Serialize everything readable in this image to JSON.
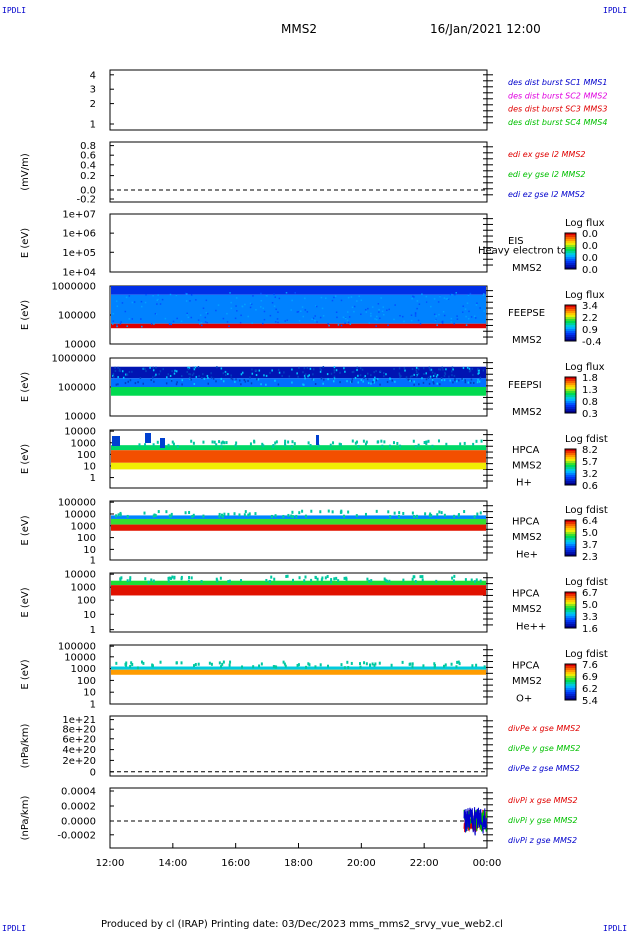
{
  "corners": {
    "tl": "IPDLI",
    "tr": "IPDLI",
    "bl": "IPDLI",
    "br": "IPDLI"
  },
  "header": {
    "mission": "MMS2",
    "datetime": "16/Jan/2021 12:00"
  },
  "footer": {
    "text": "Produced by cl (IRAP)    Printing date: 03/Dec/2023    mms_mms2_srvy_vue_web2.cl"
  },
  "xaxis": {
    "ticks": [
      "12:00",
      "14:00",
      "16:00",
      "18:00",
      "20:00",
      "22:00",
      "00:00"
    ]
  },
  "colors": {
    "red": "#e00000",
    "green": "#00c000",
    "blue": "#0000cc",
    "magenta": "#e000e0",
    "dark": "#000000"
  },
  "panels": [
    {
      "id": "fpi-dist",
      "ylabel": "",
      "ticks": [
        "4",
        "3",
        "2",
        "1"
      ],
      "legend": [
        {
          "text": "des dist burst SC1 MMS1",
          "color": "#0000cc"
        },
        {
          "text": "des dist burst SC2 MMS2",
          "color": "#e000e0"
        },
        {
          "text": "des dist burst SC3 MMS3",
          "color": "#e00000"
        },
        {
          "text": "des dist burst SC4 MMS4",
          "color": "#00c000"
        }
      ]
    },
    {
      "id": "edi-e",
      "ylabel": "(mV/m)",
      "ticks": [
        "0.8",
        "0.6",
        "0.4",
        "0.2",
        "0.0",
        "-0.2"
      ],
      "legend": [
        {
          "text": "edi ex gse l2 MMS2",
          "color": "#e00000"
        },
        {
          "text": "edi ey gse l2 MMS2",
          "color": "#00c000"
        },
        {
          "text": "edi ez gse l2 MMS2",
          "color": "#0000cc"
        }
      ]
    },
    {
      "id": "eis",
      "ylabel": "E (eV)",
      "ticks": [
        "1e+07",
        "1e+06",
        "1e+05",
        "1e+04"
      ],
      "side": [
        "EIS",
        "MMS2"
      ],
      "overlay": "Heavy electron to",
      "cbar": {
        "title": "Log flux",
        "values": [
          "0.0",
          "0.0",
          "0.0",
          "0.0"
        ]
      }
    },
    {
      "id": "feeps-e",
      "ylabel": "E (eV)",
      "ticks": [
        "1000000",
        "100000",
        "10000"
      ],
      "side": [
        "FEEPSE",
        "MMS2"
      ],
      "cbar": {
        "title": "Log flux",
        "values": [
          "3.4",
          "2.2",
          "0.9",
          "-0.4"
        ]
      }
    },
    {
      "id": "feeps-i",
      "ylabel": "E (eV)",
      "ticks": [
        "1000000",
        "100000",
        "10000"
      ],
      "side": [
        "FEEPSI",
        "MMS2"
      ],
      "cbar": {
        "title": "Log flux",
        "values": [
          "1.8",
          "1.3",
          "0.8",
          "0.3"
        ]
      }
    },
    {
      "id": "hpca-h",
      "ylabel": "E (eV)",
      "ticks": [
        "10000",
        "1000",
        "100",
        "10",
        "1"
      ],
      "side": [
        "HPCA",
        "MMS2",
        "H+"
      ],
      "cbar": {
        "title": "Log fdist",
        "values": [
          "8.2",
          "5.7",
          "3.2",
          "0.6"
        ]
      }
    },
    {
      "id": "hpca-he",
      "ylabel": "E (eV)",
      "ticks": [
        "100000",
        "10000",
        "1000",
        "100",
        "10",
        "1"
      ],
      "side": [
        "HPCA",
        "MMS2",
        "He+"
      ],
      "cbar": {
        "title": "Log fdist",
        "values": [
          "6.4",
          "5.0",
          "3.7",
          "2.3"
        ]
      }
    },
    {
      "id": "hpca-hepp",
      "ylabel": "E (eV)",
      "ticks": [
        "10000",
        "1000",
        "100",
        "10",
        "1"
      ],
      "side": [
        "HPCA",
        "MMS2",
        "He++"
      ],
      "cbar": {
        "title": "Log fdist",
        "values": [
          "6.7",
          "5.0",
          "3.3",
          "1.6"
        ]
      }
    },
    {
      "id": "hpca-o",
      "ylabel": "E (eV)",
      "ticks": [
        "100000",
        "10000",
        "1000",
        "100",
        "10",
        "1"
      ],
      "side": [
        "HPCA",
        "MMS2",
        "O+"
      ],
      "cbar": {
        "title": "Log fdist",
        "values": [
          "7.6",
          "6.9",
          "6.2",
          "5.4"
        ]
      }
    },
    {
      "id": "divpe",
      "ylabel": "(nPa/km)",
      "ticks": [
        "1e+21",
        "8e+20",
        "6e+20",
        "4e+20",
        "2e+20",
        "0"
      ],
      "legend": [
        {
          "text": "divPe x gse MMS2",
          "color": "#e00000"
        },
        {
          "text": "divPe y gse MMS2",
          "color": "#00c000"
        },
        {
          "text": "divPe z gse MMS2",
          "color": "#0000cc"
        }
      ]
    },
    {
      "id": "divpi",
      "ylabel": "(nPa/km)",
      "ticks": [
        "0.0004",
        "0.0002",
        "0.0000",
        "-0.0002"
      ],
      "legend": [
        {
          "text": "divPi x gse MMS2",
          "color": "#e00000"
        },
        {
          "text": "divPi y gse MMS2",
          "color": "#00c000"
        },
        {
          "text": "divPi z gse MMS2",
          "color": "#0000cc"
        }
      ]
    }
  ],
  "chart_data": {
    "type": "heatmap",
    "title": "MMS2",
    "time_start": "16/Jan/2021 12:00",
    "xlabel": "",
    "x_ticks": [
      "12:00",
      "14:00",
      "16:00",
      "18:00",
      "20:00",
      "22:00",
      "00:00"
    ],
    "panels": [
      {
        "name": "des dist burst",
        "type": "line",
        "ylim": [
          0.5,
          4.5
        ]
      },
      {
        "name": "edi e gse l2",
        "type": "line",
        "ylim": [
          -0.2,
          0.9
        ],
        "series": [
          {
            "name": "edi ex gse l2 MMS2",
            "values": []
          },
          {
            "name": "edi ey gse l2 MMS2",
            "values": []
          },
          {
            "name": "edi ez gse l2 MMS2",
            "values": []
          }
        ]
      },
      {
        "name": "EIS",
        "type": "heatmap",
        "ylim": [
          10000,
          10000000
        ],
        "log": true,
        "colorbar": [
          0.0,
          0.0
        ]
      },
      {
        "name": "FEEPSE",
        "type": "heatmap",
        "ylim": [
          10000,
          1000000
        ],
        "log": true,
        "colorbar": [
          -0.4,
          3.4
        ],
        "bands": [
          {
            "e_low": 500000,
            "e_high": 1000000,
            "level": 0.2
          },
          {
            "e_low": 50000,
            "e_high": 500000,
            "level": 0.7
          },
          {
            "e_low": 35000,
            "e_high": 50000,
            "level": 3.4
          }
        ]
      },
      {
        "name": "FEEPSI",
        "type": "heatmap",
        "ylim": [
          10000,
          1000000
        ],
        "log": true,
        "colorbar": [
          0.3,
          1.8
        ],
        "bands": [
          {
            "e_low": 200000,
            "e_high": 500000,
            "level": 0.4
          },
          {
            "e_low": 100000,
            "e_high": 200000,
            "level": 0.7
          },
          {
            "e_low": 50000,
            "e_high": 100000,
            "level": 1.1
          }
        ]
      },
      {
        "name": "HPCA H+",
        "type": "heatmap",
        "ylim": [
          1,
          40000
        ],
        "log": true,
        "colorbar": [
          0.6,
          8.2
        ],
        "bands": [
          {
            "e_low": 1000,
            "e_high": 2500,
            "level": 4.5
          },
          {
            "e_low": 100,
            "e_high": 1000,
            "level": 7.5
          },
          {
            "e_low": 30,
            "e_high": 100,
            "level": 6.0
          }
        ]
      },
      {
        "name": "HPCA He+",
        "type": "heatmap",
        "ylim": [
          1,
          100000
        ],
        "log": true,
        "colorbar": [
          2.3,
          6.4
        ],
        "bands": [
          {
            "e_low": 3000,
            "e_high": 6000,
            "level": 3.5
          },
          {
            "e_low": 1000,
            "e_high": 3000,
            "level": 4.7
          },
          {
            "e_low": 300,
            "e_high": 1000,
            "level": 6.3
          }
        ]
      },
      {
        "name": "HPCA He++",
        "type": "heatmap",
        "ylim": [
          1,
          10000
        ],
        "log": true,
        "colorbar": [
          1.6,
          6.7
        ],
        "bands": [
          {
            "e_low": 1500,
            "e_high": 3000,
            "level": 4.5
          },
          {
            "e_low": 300,
            "e_high": 1500,
            "level": 6.6
          }
        ]
      },
      {
        "name": "HPCA O+",
        "type": "heatmap",
        "ylim": [
          1,
          100000
        ],
        "log": true,
        "colorbar": [
          5.4,
          7.6
        ],
        "bands": [
          {
            "e_low": 800,
            "e_high": 1500,
            "level": 6.3
          },
          {
            "e_low": 300,
            "e_high": 800,
            "level": 7.2
          }
        ]
      },
      {
        "name": "divPe gse",
        "type": "line",
        "ylim": [
          0,
          1.1e+21
        ],
        "series": [
          {
            "name": "divPe x gse MMS2",
            "values": []
          },
          {
            "name": "divPe y gse MMS2",
            "values": []
          },
          {
            "name": "divPe z gse MMS2",
            "values": []
          }
        ]
      },
      {
        "name": "divPi gse",
        "type": "line",
        "ylim": [
          -0.0003,
          0.0004
        ],
        "series": [
          {
            "name": "divPi x gse MMS2",
            "values": []
          },
          {
            "name": "divPi y gse MMS2",
            "values": []
          },
          {
            "name": "divPi z gse MMS2",
            "values": []
          }
        ],
        "active_interval": [
          "23:30",
          "00:00"
        ]
      }
    ]
  }
}
